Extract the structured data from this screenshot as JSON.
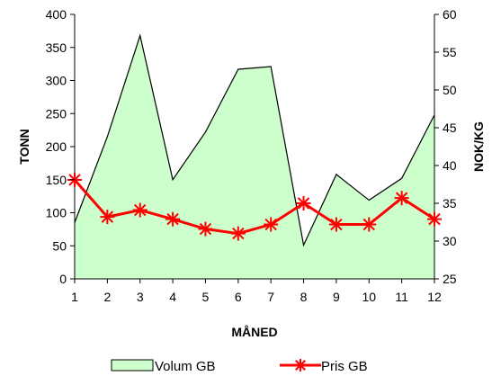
{
  "chart_data": {
    "type": "area",
    "title": "",
    "xlabel": "MÅNED",
    "ylabel": "TONN",
    "y2label": "NOK/KG",
    "categories": [
      "1",
      "2",
      "3",
      "4",
      "5",
      "6",
      "7",
      "8",
      "9",
      "10",
      "11",
      "12"
    ],
    "ylim": [
      0,
      400
    ],
    "yticks": [
      0,
      50,
      100,
      150,
      200,
      250,
      300,
      350,
      400
    ],
    "y2lim": [
      25,
      60
    ],
    "y2ticks": [
      25,
      30,
      35,
      40,
      45,
      50,
      55,
      60
    ],
    "grid": false,
    "legend_position": "bottom",
    "series": [
      {
        "name": "Volum GB",
        "type": "area",
        "axis": "left",
        "color": "#ccffcc",
        "values": [
          85,
          215,
          368,
          150,
          222,
          317,
          321,
          51,
          158,
          119,
          152,
          248
        ]
      },
      {
        "name": "Pris GB",
        "type": "line",
        "axis": "right",
        "marker": "asterisk",
        "color": "#ff0000",
        "values": [
          38.1,
          33.2,
          34.1,
          32.9,
          31.6,
          31.0,
          32.2,
          35.0,
          32.2,
          32.2,
          35.7,
          32.9
        ]
      }
    ]
  }
}
